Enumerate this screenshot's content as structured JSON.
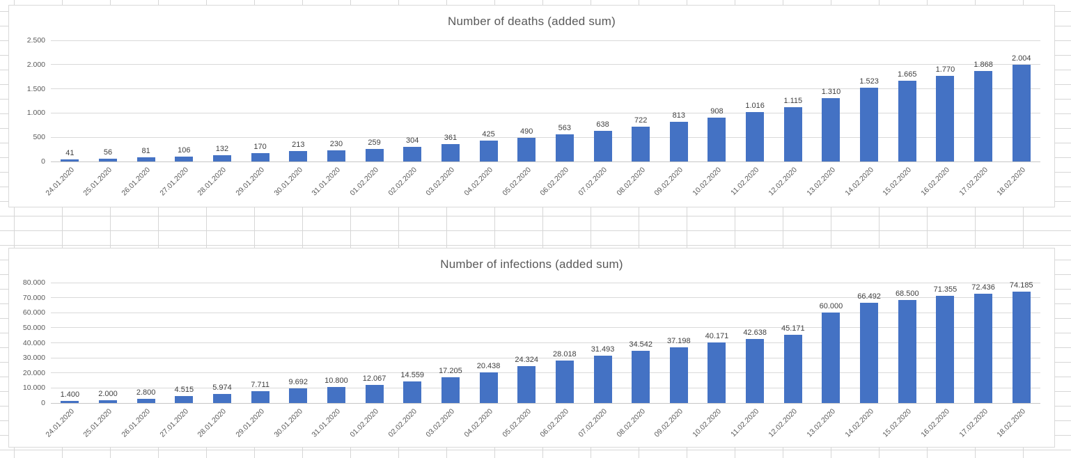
{
  "colors": {
    "bar_fill": "#4472c4",
    "chart_gridline": "#d9d9d9",
    "title_text": "#595959",
    "axis_text": "#595959",
    "data_label_text": "#404040",
    "sheet_gridline": "#d6d6d6"
  },
  "chart_data": [
    {
      "type": "bar",
      "title": "Number of deaths (added sum)",
      "xlabel": "",
      "ylabel": "",
      "ylim": [
        0,
        2500
      ],
      "grid": true,
      "legend": "none",
      "y_ticks": [
        "0",
        "500",
        "1.000",
        "1.500",
        "2.000",
        "2.500"
      ],
      "categories": [
        "24.01.2020",
        "25.01.2020",
        "26.01.2020",
        "27.01.2020",
        "28.01.2020",
        "29.01.2020",
        "30.01.2020",
        "31.01.2020",
        "01.02.2020",
        "02.02.2020",
        "03.02.2020",
        "04.02.2020",
        "05.02.2020",
        "06.02.2020",
        "07.02.2020",
        "08.02.2020",
        "09.02.2020",
        "10.02.2020",
        "11.02.2020",
        "12.02.2020",
        "13.02.2020",
        "14.02.2020",
        "15.02.2020",
        "16.02.2020",
        "17.02.2020",
        "18.02.2020"
      ],
      "values": [
        41,
        56,
        81,
        106,
        132,
        170,
        213,
        230,
        259,
        304,
        361,
        425,
        490,
        563,
        638,
        722,
        813,
        908,
        1016,
        1115,
        1310,
        1523,
        1665,
        1770,
        1868,
        2004
      ],
      "value_labels": [
        "41",
        "56",
        "81",
        "106",
        "132",
        "170",
        "213",
        "230",
        "259",
        "304",
        "361",
        "425",
        "490",
        "563",
        "638",
        "722",
        "813",
        "908",
        "1.016",
        "1.115",
        "1.310",
        "1.523",
        "1.665",
        "1.770",
        "1.868",
        "2.004"
      ]
    },
    {
      "type": "bar",
      "title": "Number of infections (added sum)",
      "xlabel": "",
      "ylabel": "",
      "ylim": [
        0,
        80000
      ],
      "grid": true,
      "legend": "none",
      "y_ticks": [
        "0",
        "10.000",
        "20.000",
        "30.000",
        "40.000",
        "50.000",
        "60.000",
        "70.000",
        "80.000"
      ],
      "categories": [
        "24.01.2020",
        "25.01.2020",
        "26.01.2020",
        "27.01.2020",
        "28.01.2020",
        "29.01.2020",
        "30.01.2020",
        "31.01.2020",
        "01.02.2020",
        "02.02.2020",
        "03.02.2020",
        "04.02.2020",
        "05.02.2020",
        "06.02.2020",
        "07.02.2020",
        "08.02.2020",
        "09.02.2020",
        "10.02.2020",
        "11.02.2020",
        "12.02.2020",
        "13.02.2020",
        "14.02.2020",
        "15.02.2020",
        "16.02.2020",
        "17.02.2020",
        "18.02.2020"
      ],
      "values": [
        1400,
        2000,
        2800,
        4515,
        5974,
        7711,
        9692,
        10800,
        12067,
        14559,
        17205,
        20438,
        24324,
        28018,
        31493,
        34542,
        37198,
        40171,
        42638,
        45171,
        60000,
        66492,
        68500,
        71355,
        72436,
        74185
      ],
      "value_labels": [
        "1.400",
        "2.000",
        "2.800",
        "4.515",
        "5.974",
        "7.711",
        "9.692",
        "10.800",
        "12.067",
        "14.559",
        "17.205",
        "20.438",
        "24.324",
        "28.018",
        "31.493",
        "34.542",
        "37.198",
        "40.171",
        "42.638",
        "45.171",
        "60.000",
        "66.492",
        "68.500",
        "71.355",
        "72.436",
        "74.185"
      ]
    }
  ]
}
